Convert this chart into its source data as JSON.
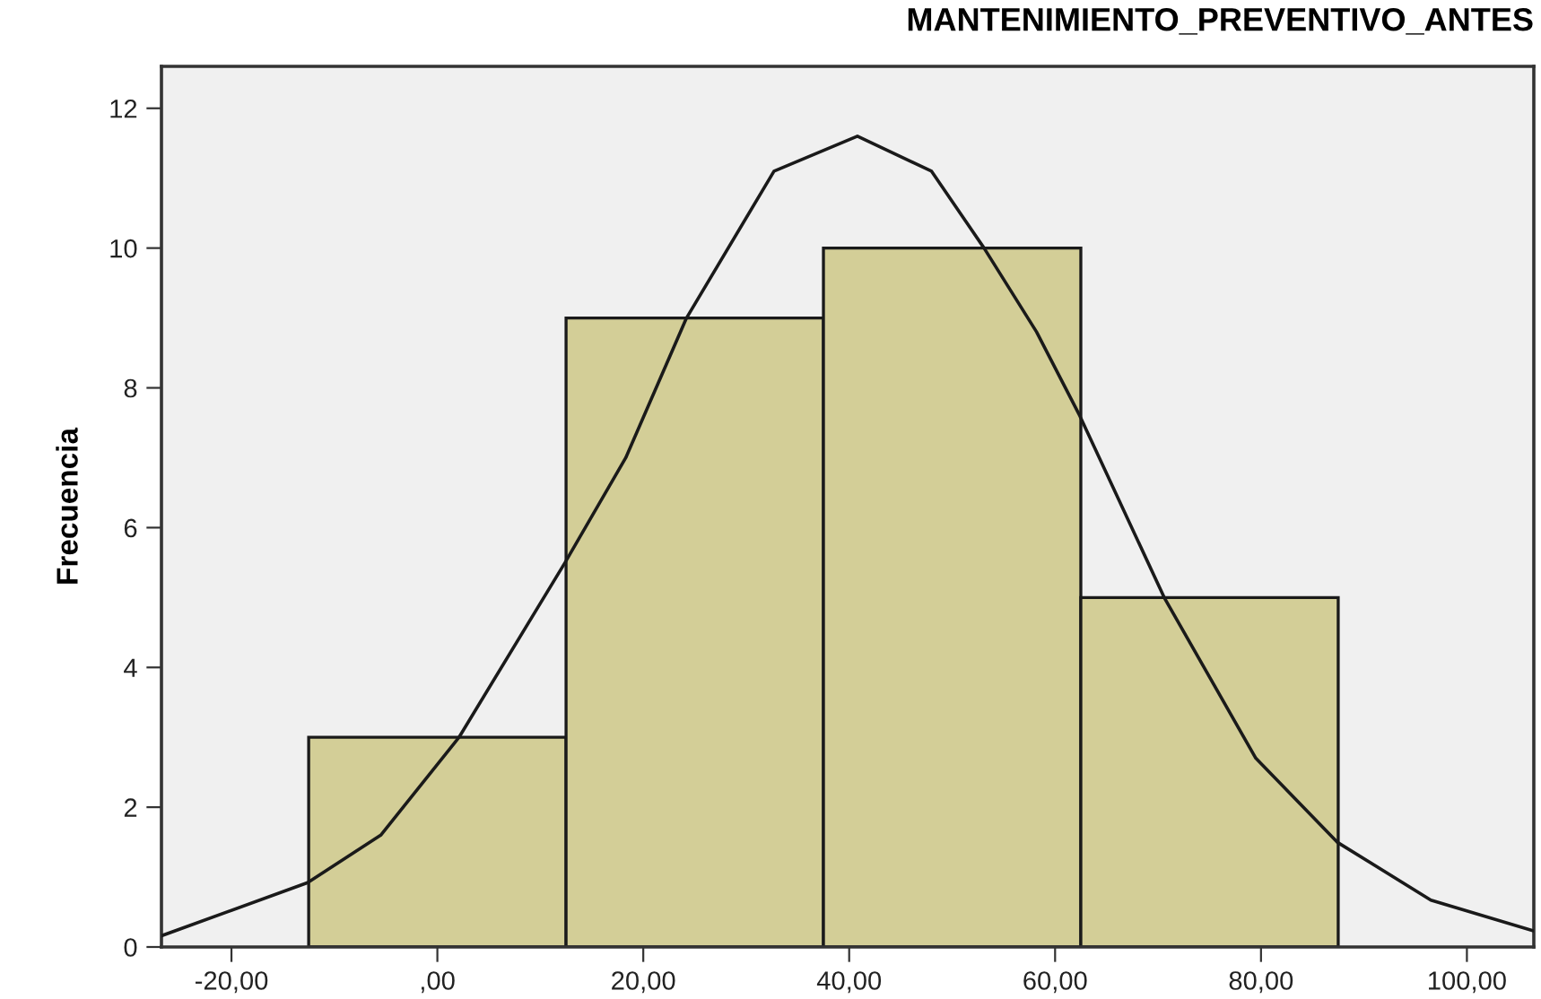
{
  "chart_data": {
    "type": "histogram",
    "title": "MANTENIMIENTO_PREVENTIVO_ANTES",
    "ylabel": "Frecuencia",
    "bins": [
      -12.5,
      12.5,
      37.5,
      62.5,
      87.5
    ],
    "values": [
      3,
      9,
      10,
      5
    ],
    "color": "#d3ce97",
    "series": [
      {
        "type": "line",
        "color": "#1a1a1a",
        "x": [
          -26.8,
          -12.6,
          -5.5,
          2.1,
          12.4,
          18.3,
          24.2,
          32.7,
          40.8,
          48.0,
          53.1,
          58.2,
          62.4,
          70.6,
          79.5,
          87.4,
          96.5,
          106.5
        ],
        "values": [
          0.16,
          0.92,
          1.6,
          3.0,
          5.5,
          7.0,
          9.0,
          11.1,
          11.6,
          11.1,
          10.0,
          8.8,
          7.6,
          5.0,
          2.7,
          1.5,
          0.67,
          0.23
        ]
      }
    ],
    "xlim": [
      -26.8,
      106.5
    ],
    "ylim": [
      0,
      12.6
    ],
    "xticks": [
      {
        "value": -20,
        "label": "-20,00"
      },
      {
        "value": 0,
        "label": ",00"
      },
      {
        "value": 20,
        "label": "20,00"
      },
      {
        "value": 40,
        "label": "40,00"
      },
      {
        "value": 60,
        "label": "60,00"
      },
      {
        "value": 80,
        "label": "80,00"
      },
      {
        "value": 100,
        "label": "100,00"
      }
    ],
    "yticks": [
      0,
      2,
      4,
      6,
      8,
      10,
      12
    ],
    "grid": false,
    "legend": false
  }
}
